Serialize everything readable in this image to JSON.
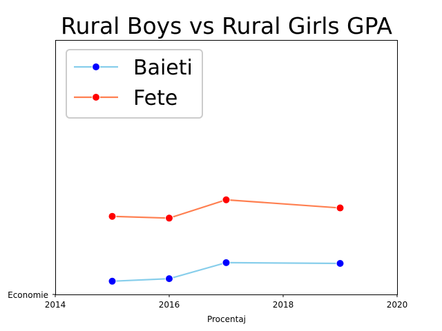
{
  "chart_data": {
    "type": "line",
    "title": "Rural Boys vs Rural Girls GPA",
    "xlabel": "Procentaj",
    "ylabel": "",
    "xlim": [
      2014,
      2020
    ],
    "ylim": [
      0,
      10
    ],
    "x_ticks": [
      "2014",
      "2016",
      "2018",
      "2020"
    ],
    "y_tick_labels": [
      "Economie"
    ],
    "grid": false,
    "legend_position": "top-left",
    "series": [
      {
        "name": "Baieti",
        "x": [
          2015,
          2016,
          2017,
          2019
        ],
        "y": [
          0.52,
          0.62,
          1.25,
          1.22
        ],
        "line_color": "#87ceeb",
        "marker_color": "#0000ff"
      },
      {
        "name": "Fete",
        "x": [
          2015,
          2016,
          2017,
          2019
        ],
        "y": [
          3.07,
          3.0,
          3.72,
          3.4
        ],
        "line_color": "#ff7f50",
        "marker_color": "#ff0000"
      }
    ]
  }
}
